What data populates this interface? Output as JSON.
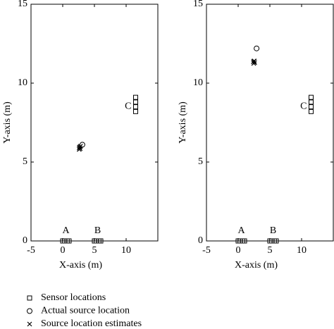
{
  "chart_data": [
    {
      "type": "scatter",
      "x_label": "X-axis (m)",
      "y_label": "Y-axis (m)",
      "xlim": [
        -5,
        15
      ],
      "ylim": [
        0,
        15
      ],
      "xticks": [
        -5,
        0,
        5,
        10
      ],
      "yticks": [
        0,
        5,
        10,
        15
      ],
      "series": [
        {
          "label": "A",
          "marker": "square",
          "x": [
            0,
            0.3,
            0.7,
            1
          ],
          "y": [
            0,
            0,
            0,
            0
          ]
        },
        {
          "label": "B",
          "marker": "square",
          "x": [
            5,
            5.3,
            5.7,
            6
          ],
          "y": [
            0,
            0,
            0,
            0
          ]
        },
        {
          "label": "C",
          "marker": "square",
          "x": [
            11.5,
            11.5,
            11.5,
            11.5
          ],
          "y": [
            9.1,
            8.8,
            8.5,
            8.2
          ]
        },
        {
          "marker": "circle",
          "x": [
            3.1
          ],
          "y": [
            6.1
          ]
        },
        {
          "marker": "cross",
          "x": [
            2.6,
            2.7,
            2.8,
            2.6,
            2.75
          ],
          "y": [
            5.8,
            5.95,
            6.0,
            5.9,
            5.85
          ]
        }
      ]
    },
    {
      "type": "scatter",
      "x_label": "X-axis (m)",
      "y_label": "Y-axis (m)",
      "xlim": [
        -5,
        15
      ],
      "ylim": [
        0,
        15
      ],
      "xticks": [
        -5,
        0,
        5,
        10
      ],
      "yticks": [
        0,
        5,
        10,
        15
      ],
      "series": [
        {
          "label": "A",
          "marker": "square",
          "x": [
            0,
            0.3,
            0.7,
            1
          ],
          "y": [
            0,
            0,
            0,
            0
          ]
        },
        {
          "label": "B",
          "marker": "square",
          "x": [
            5,
            5.3,
            5.7,
            6
          ],
          "y": [
            0,
            0,
            0,
            0
          ]
        },
        {
          "label": "C",
          "marker": "square",
          "x": [
            11.5,
            11.5,
            11.5,
            11.5
          ],
          "y": [
            9.1,
            8.8,
            8.5,
            8.2
          ]
        },
        {
          "marker": "circle",
          "x": [
            2.9
          ],
          "y": [
            12.2
          ]
        },
        {
          "marker": "cross",
          "x": [
            2.4,
            2.5,
            2.6,
            2.45,
            2.55
          ],
          "y": [
            11.35,
            11.4,
            11.3,
            11.25,
            11.4
          ]
        }
      ]
    }
  ],
  "legend": [
    {
      "name": "Sensor locations",
      "marker": "square"
    },
    {
      "name": "Actual source location",
      "marker": "circle"
    },
    {
      "name": "Source location estimates",
      "marker": "cross"
    }
  ]
}
